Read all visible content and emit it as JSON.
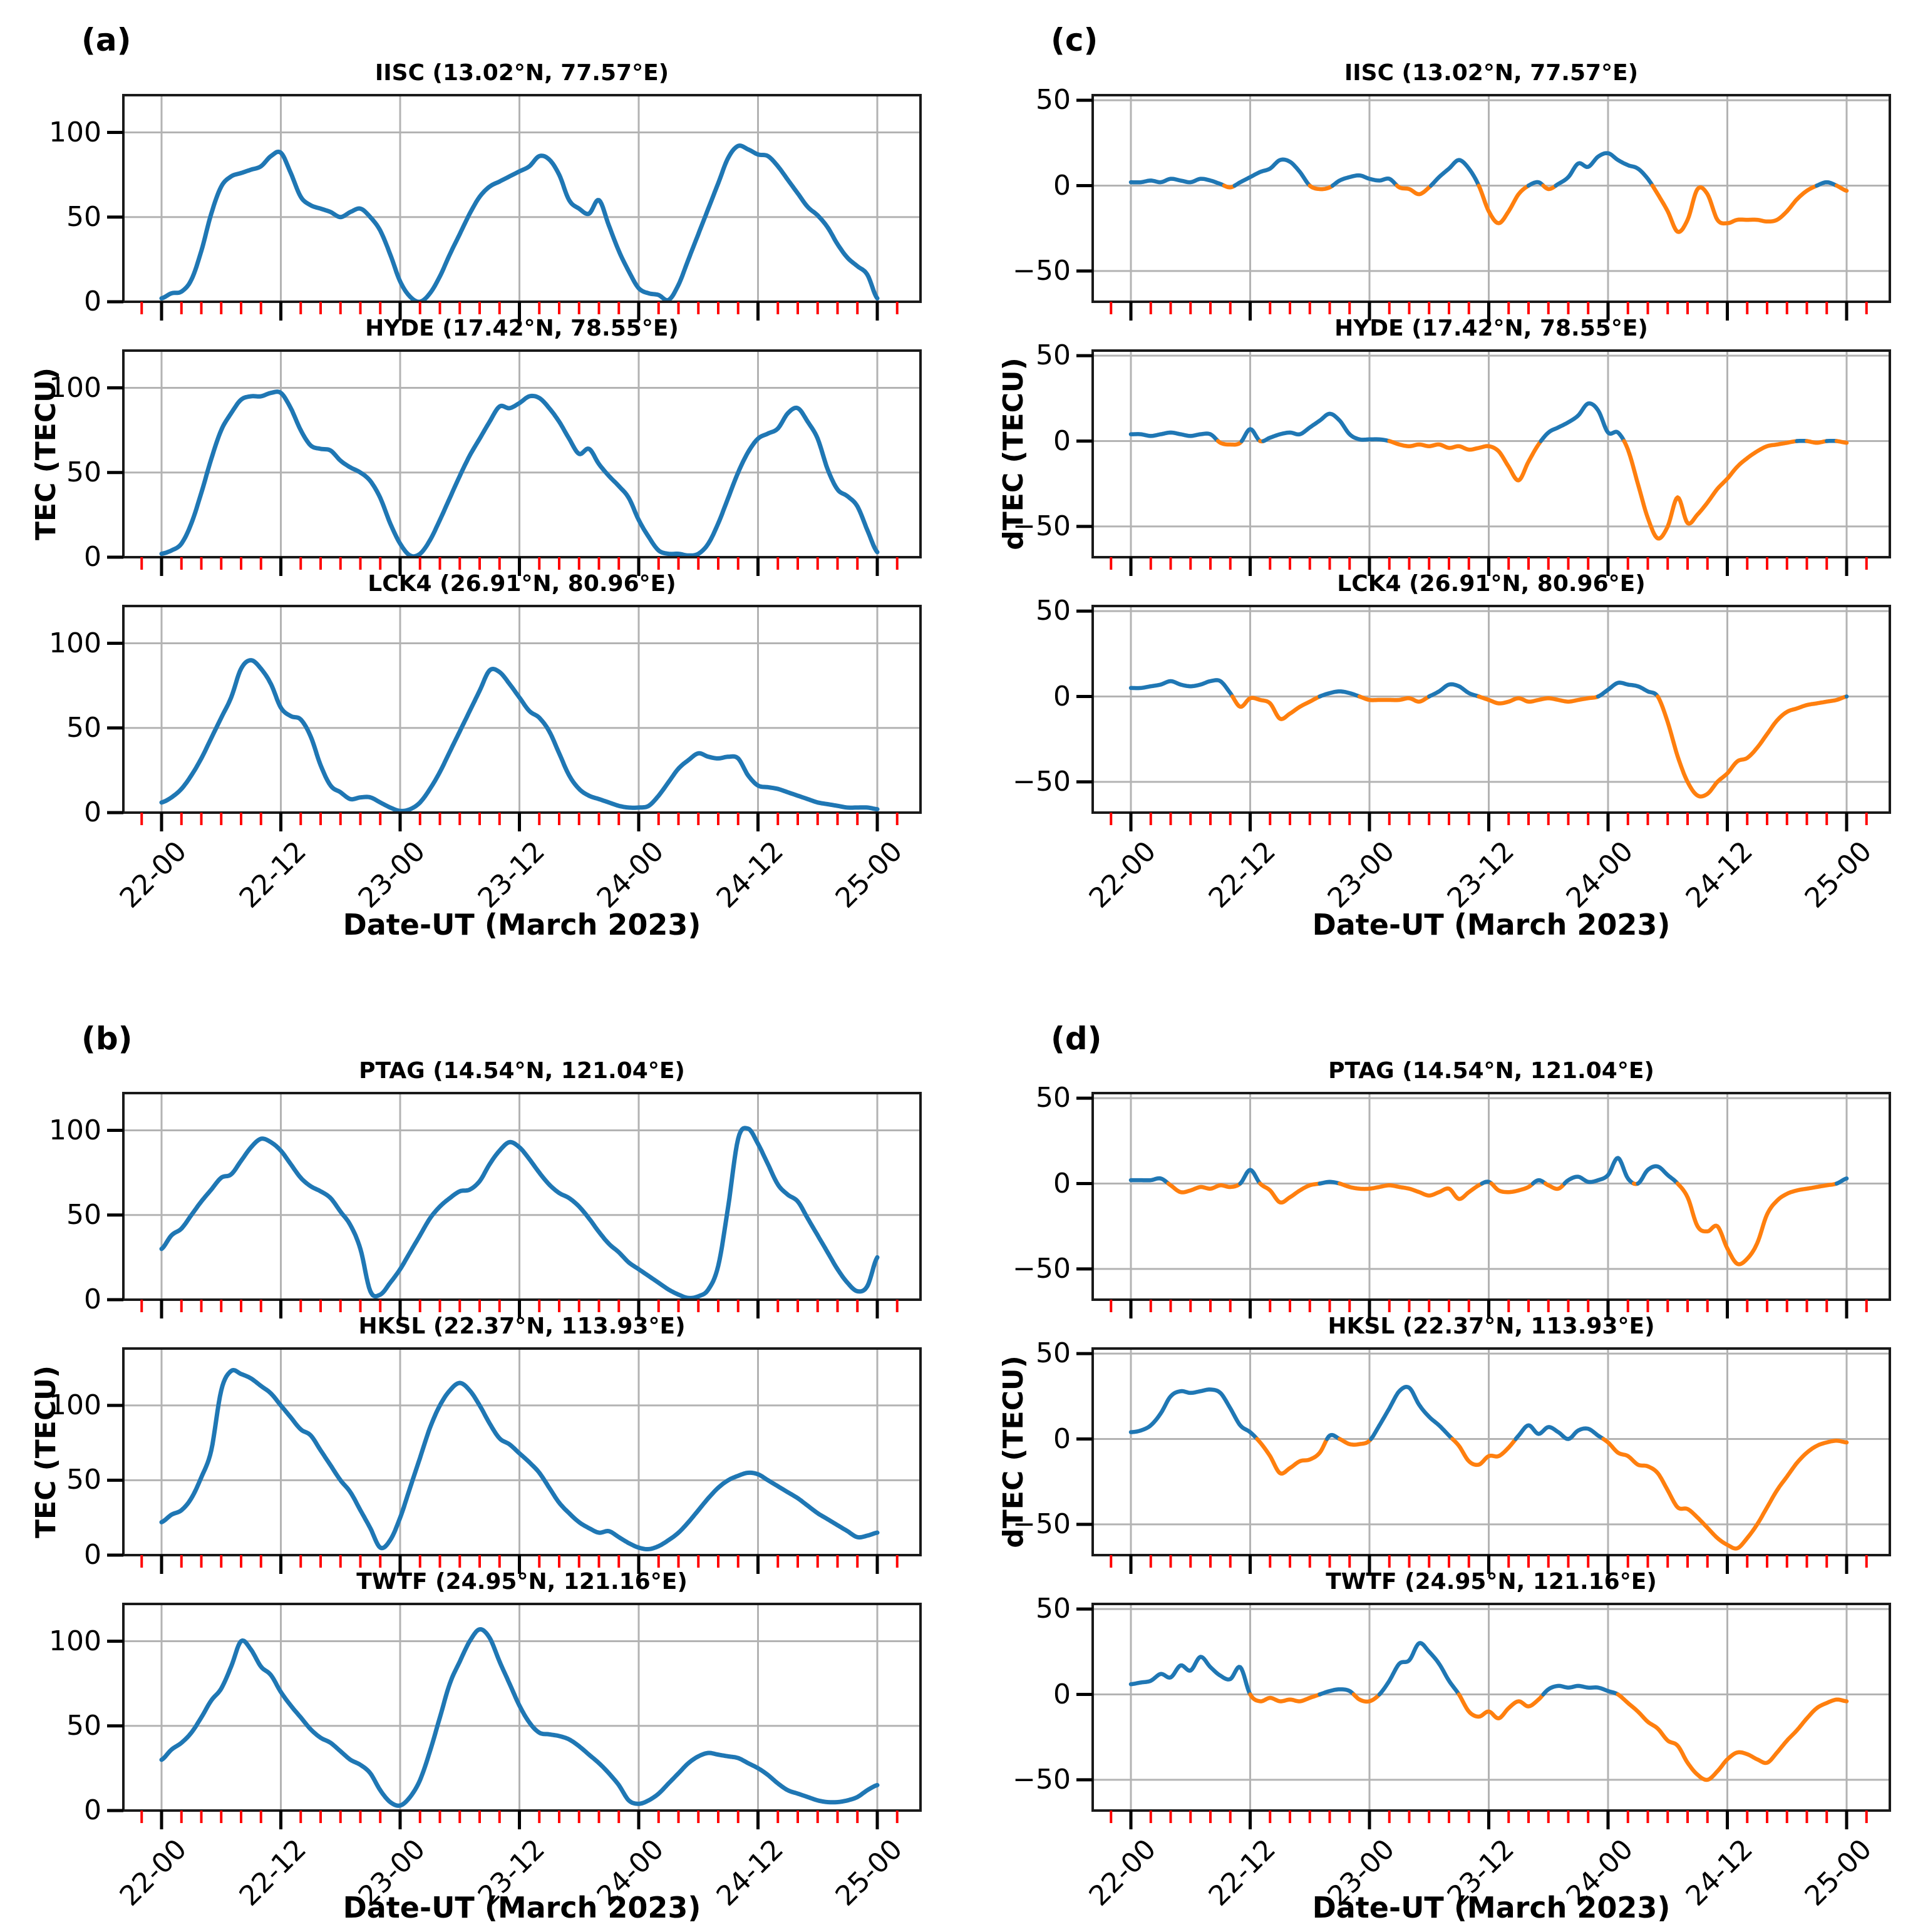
{
  "figure_caption_hint": "TEC and dTEC time series panels",
  "colors": {
    "tec_line": "#1f77b4",
    "dtec_positive": "#1f77b4",
    "dtec_negative": "#ff7f0e",
    "grid": "#b3b3b3",
    "spine": "#1a1a1a",
    "major_tick": "#000000",
    "minor_tick": "#ff0000",
    "background": "#ffffff"
  },
  "chart_data": [
    {
      "id": "a",
      "panel_label": "(a)",
      "type": "line",
      "ylabel": "TEC (TECU)",
      "xlabel": "Date-UT (March 2023)",
      "x_tick_labels": [
        "22-00",
        "22-12",
        "23-00",
        "23-12",
        "24-00",
        "24-12",
        "25-00"
      ],
      "x_range_hours": [
        0,
        72
      ],
      "ylim": [
        0,
        122
      ],
      "yticks": [
        {
          "label": "0",
          "v": 0
        },
        {
          "label": "50",
          "v": 50
        },
        {
          "label": "100",
          "v": 100
        }
      ],
      "mode": "single",
      "subplots": [
        {
          "title": "IISC (13.02°N, 77.57°E)",
          "values": [
            2,
            5,
            6,
            13,
            30,
            52,
            68,
            74,
            76,
            78,
            80,
            86,
            88,
            76,
            62,
            57,
            55,
            53,
            50,
            53,
            55,
            50,
            42,
            28,
            12,
            3,
            0,
            5,
            15,
            28,
            40,
            52,
            62,
            68,
            71,
            74,
            77,
            80,
            86,
            84,
            75,
            60,
            55,
            52,
            60,
            45,
            30,
            18,
            8,
            5,
            4,
            1,
            10,
            25,
            40,
            55,
            70,
            85,
            92,
            90,
            87,
            86,
            80,
            72,
            64,
            56,
            51,
            44,
            34,
            26,
            21,
            16,
            2
          ]
        },
        {
          "title": "HYDE (17.42°N, 78.55°E)",
          "values": [
            2,
            4,
            8,
            20,
            38,
            58,
            75,
            85,
            93,
            95,
            95,
            97,
            97,
            88,
            75,
            66,
            64,
            63,
            57,
            53,
            50,
            45,
            35,
            20,
            8,
            1,
            2,
            10,
            22,
            35,
            48,
            60,
            70,
            80,
            89,
            88,
            91,
            95,
            94,
            88,
            80,
            70,
            61,
            64,
            55,
            48,
            42,
            35,
            22,
            12,
            4,
            2,
            2,
            1,
            2,
            8,
            20,
            35,
            50,
            62,
            70,
            73,
            76,
            85,
            88,
            80,
            70,
            52,
            40,
            36,
            30,
            16,
            3
          ]
        },
        {
          "title": "LCK4 (26.91°N, 80.96°E)",
          "values": [
            6,
            9,
            14,
            22,
            32,
            44,
            56,
            68,
            85,
            90,
            85,
            76,
            62,
            57,
            55,
            45,
            28,
            16,
            12,
            8,
            9,
            9,
            6,
            3,
            1,
            2,
            6,
            14,
            24,
            36,
            48,
            60,
            72,
            84,
            83,
            76,
            68,
            60,
            56,
            48,
            35,
            22,
            14,
            10,
            8,
            6,
            4,
            3,
            3,
            4,
            10,
            18,
            26,
            31,
            35,
            33,
            32,
            33,
            32,
            22,
            16,
            15,
            14,
            12,
            10,
            8,
            6,
            5,
            4,
            3,
            3,
            3,
            2
          ]
        }
      ]
    },
    {
      "id": "b",
      "panel_label": "(b)",
      "type": "line",
      "ylabel": "TEC (TECU)",
      "xlabel": "Date-UT (March 2023)",
      "x_tick_labels": [
        "22-00",
        "22-12",
        "23-00",
        "23-12",
        "24-00",
        "24-12",
        "25-00"
      ],
      "x_range_hours": [
        0,
        72
      ],
      "ylim": [
        0,
        122
      ],
      "yticks": [
        {
          "label": "0",
          "v": 0
        },
        {
          "label": "50",
          "v": 50
        },
        {
          "label": "100",
          "v": 100
        }
      ],
      "mode": "single",
      "subplots": [
        {
          "title": "PTAG (14.54°N, 121.04°E)",
          "values": [
            30,
            38,
            42,
            50,
            58,
            65,
            72,
            74,
            82,
            90,
            95,
            93,
            88,
            80,
            72,
            67,
            64,
            60,
            52,
            44,
            30,
            5,
            3,
            10,
            18,
            28,
            38,
            48,
            55,
            60,
            64,
            65,
            70,
            80,
            88,
            93,
            90,
            83,
            75,
            68,
            63,
            60,
            55,
            48,
            40,
            33,
            28,
            22,
            18,
            14,
            10,
            6,
            3,
            1,
            2,
            6,
            20,
            55,
            95,
            101,
            92,
            80,
            68,
            62,
            58,
            48,
            38,
            28,
            18,
            10,
            5,
            8,
            25
          ]
        },
        {
          "title": "HKSL (22.37°N, 113.93°E)",
          "ylim": [
            0,
            138
          ],
          "values": [
            22,
            27,
            30,
            38,
            52,
            70,
            110,
            123,
            121,
            118,
            113,
            108,
            100,
            92,
            84,
            80,
            70,
            60,
            50,
            42,
            30,
            18,
            5,
            10,
            25,
            45,
            65,
            85,
            100,
            110,
            115,
            110,
            100,
            88,
            78,
            74,
            68,
            62,
            55,
            45,
            35,
            28,
            22,
            18,
            15,
            16,
            12,
            8,
            5,
            4,
            6,
            10,
            15,
            22,
            30,
            38,
            45,
            50,
            53,
            55,
            54,
            50,
            46,
            42,
            38,
            33,
            28,
            24,
            20,
            16,
            12,
            13,
            15
          ]
        },
        {
          "title": "TWTF (24.95°N, 121.16°E)",
          "values": [
            30,
            36,
            40,
            46,
            55,
            65,
            72,
            85,
            100,
            95,
            85,
            80,
            70,
            62,
            55,
            48,
            43,
            40,
            35,
            30,
            27,
            22,
            12,
            5,
            3,
            8,
            18,
            35,
            55,
            75,
            88,
            100,
            107,
            102,
            88,
            75,
            62,
            52,
            46,
            45,
            44,
            42,
            38,
            33,
            28,
            22,
            15,
            6,
            4,
            6,
            10,
            16,
            22,
            28,
            32,
            34,
            33,
            32,
            31,
            28,
            25,
            21,
            16,
            12,
            10,
            8,
            6,
            5,
            5,
            6,
            8,
            12,
            15
          ]
        }
      ]
    },
    {
      "id": "c",
      "panel_label": "(c)",
      "type": "line",
      "ylabel": "dTEC (TECU)",
      "xlabel": "Date-UT (March 2023)",
      "x_tick_labels": [
        "22-00",
        "22-12",
        "23-00",
        "23-12",
        "24-00",
        "24-12",
        "25-00"
      ],
      "x_range_hours": [
        0,
        72
      ],
      "ylim": [
        -68,
        53
      ],
      "yticks": [
        {
          "label": "−50",
          "v": -50
        },
        {
          "label": "0",
          "v": 0
        },
        {
          "label": "50",
          "v": 50
        }
      ],
      "mode": "signed",
      "subplots": [
        {
          "title": "IISC (13.02°N, 77.57°E)",
          "values": [
            2,
            2,
            3,
            2,
            4,
            3,
            2,
            4,
            3,
            1,
            -1,
            2,
            5,
            8,
            10,
            15,
            14,
            8,
            0,
            -2,
            -1,
            3,
            5,
            6,
            4,
            3,
            4,
            -1,
            -2,
            -5,
            -1,
            5,
            10,
            15,
            10,
            0,
            -15,
            -22,
            -15,
            -5,
            0,
            2,
            -2,
            1,
            5,
            13,
            11,
            17,
            19,
            15,
            12,
            10,
            4,
            -5,
            -15,
            -27,
            -20,
            -2,
            -5,
            -20,
            -22,
            -20,
            -20,
            -20,
            -21,
            -20,
            -15,
            -8,
            -3,
            0,
            2,
            0,
            -3
          ]
        },
        {
          "title": "HYDE (17.42°N, 78.55°E)",
          "values": [
            4,
            4,
            3,
            4,
            5,
            4,
            3,
            4,
            4,
            -1,
            -2,
            -1,
            7,
            0,
            2,
            4,
            5,
            4,
            8,
            12,
            16,
            12,
            4,
            1,
            1,
            1,
            0,
            -2,
            -3,
            -2,
            -3,
            -2,
            -4,
            -3,
            -5,
            -4,
            -3,
            -6,
            -15,
            -23,
            -12,
            -2,
            5,
            8,
            11,
            15,
            22,
            18,
            5,
            5,
            -5,
            -25,
            -45,
            -57,
            -50,
            -33,
            -48,
            -43,
            -36,
            -28,
            -22,
            -15,
            -10,
            -6,
            -3,
            -2,
            -1,
            0,
            0,
            -1,
            0,
            0,
            -1
          ]
        },
        {
          "title": "LCK4 (26.91°N, 80.96°E)",
          "values": [
            5,
            5,
            6,
            7,
            9,
            7,
            6,
            7,
            9,
            9,
            2,
            -6,
            -1,
            -2,
            -4,
            -13,
            -10,
            -6,
            -3,
            0,
            2,
            3,
            2,
            0,
            -2,
            -2,
            -2,
            -2,
            -1,
            -3,
            0,
            3,
            7,
            6,
            2,
            0,
            -2,
            -4,
            -3,
            -1,
            -3,
            -2,
            -1,
            -2,
            -3,
            -2,
            -1,
            0,
            4,
            8,
            7,
            6,
            3,
            0,
            -15,
            -35,
            -50,
            -58,
            -57,
            -50,
            -45,
            -38,
            -36,
            -30,
            -22,
            -14,
            -9,
            -7,
            -5,
            -4,
            -3,
            -2,
            0
          ]
        }
      ]
    },
    {
      "id": "d",
      "panel_label": "(d)",
      "type": "line",
      "ylabel": "dTEC (TECU)",
      "xlabel": "Date-UT (March 2023)",
      "x_tick_labels": [
        "22-00",
        "22-12",
        "23-00",
        "23-12",
        "24-00",
        "24-12",
        "25-00"
      ],
      "x_range_hours": [
        0,
        72
      ],
      "ylim": [
        -68,
        53
      ],
      "yticks": [
        {
          "label": "−50",
          "v": -50
        },
        {
          "label": "0",
          "v": 0
        },
        {
          "label": "50",
          "v": 50
        }
      ],
      "mode": "signed",
      "subplots": [
        {
          "title": "PTAG (14.54°N, 121.04°E)",
          "values": [
            2,
            2,
            2,
            3,
            -1,
            -5,
            -4,
            -2,
            -3,
            -1,
            -2,
            0,
            8,
            0,
            -4,
            -11,
            -8,
            -4,
            -1,
            0,
            1,
            0,
            -2,
            -3,
            -3,
            -2,
            -1,
            -2,
            -3,
            -5,
            -7,
            -5,
            -3,
            -9,
            -5,
            -1,
            1,
            -4,
            -5,
            -4,
            -2,
            2,
            -1,
            -3,
            2,
            4,
            1,
            2,
            5,
            15,
            3,
            0,
            8,
            10,
            5,
            0,
            -8,
            -25,
            -28,
            -25,
            -38,
            -47,
            -44,
            -35,
            -18,
            -10,
            -6,
            -4,
            -3,
            -2,
            -1,
            0,
            3
          ]
        },
        {
          "title": "HKSL (22.37°N, 113.93°E)",
          "values": [
            4,
            5,
            8,
            15,
            25,
            28,
            27,
            28,
            29,
            27,
            18,
            8,
            4,
            -2,
            -10,
            -20,
            -17,
            -13,
            -12,
            -8,
            2,
            0,
            -3,
            -3,
            -1,
            8,
            18,
            28,
            30,
            20,
            13,
            8,
            2,
            -4,
            -13,
            -15,
            -10,
            -10,
            -5,
            2,
            8,
            3,
            7,
            4,
            0,
            5,
            6,
            2,
            -2,
            -8,
            -10,
            -15,
            -16,
            -20,
            -30,
            -40,
            -41,
            -46,
            -52,
            -58,
            -62,
            -64,
            -58,
            -50,
            -40,
            -30,
            -22,
            -14,
            -8,
            -4,
            -2,
            -1,
            -2
          ]
        },
        {
          "title": "TWTF (24.95°N, 121.16°E)",
          "values": [
            6,
            7,
            8,
            12,
            10,
            17,
            14,
            22,
            16,
            11,
            9,
            16,
            0,
            -4,
            -2,
            -4,
            -3,
            -4,
            -2,
            0,
            2,
            3,
            2,
            -3,
            -4,
            0,
            8,
            18,
            20,
            30,
            25,
            18,
            8,
            0,
            -10,
            -13,
            -10,
            -14,
            -8,
            -4,
            -7,
            -3,
            3,
            5,
            4,
            5,
            4,
            4,
            2,
            0,
            -5,
            -10,
            -16,
            -20,
            -27,
            -30,
            -40,
            -47,
            -50,
            -45,
            -38,
            -34,
            -35,
            -38,
            -40,
            -34,
            -27,
            -21,
            -14,
            -8,
            -5,
            -3,
            -4
          ]
        }
      ]
    }
  ]
}
